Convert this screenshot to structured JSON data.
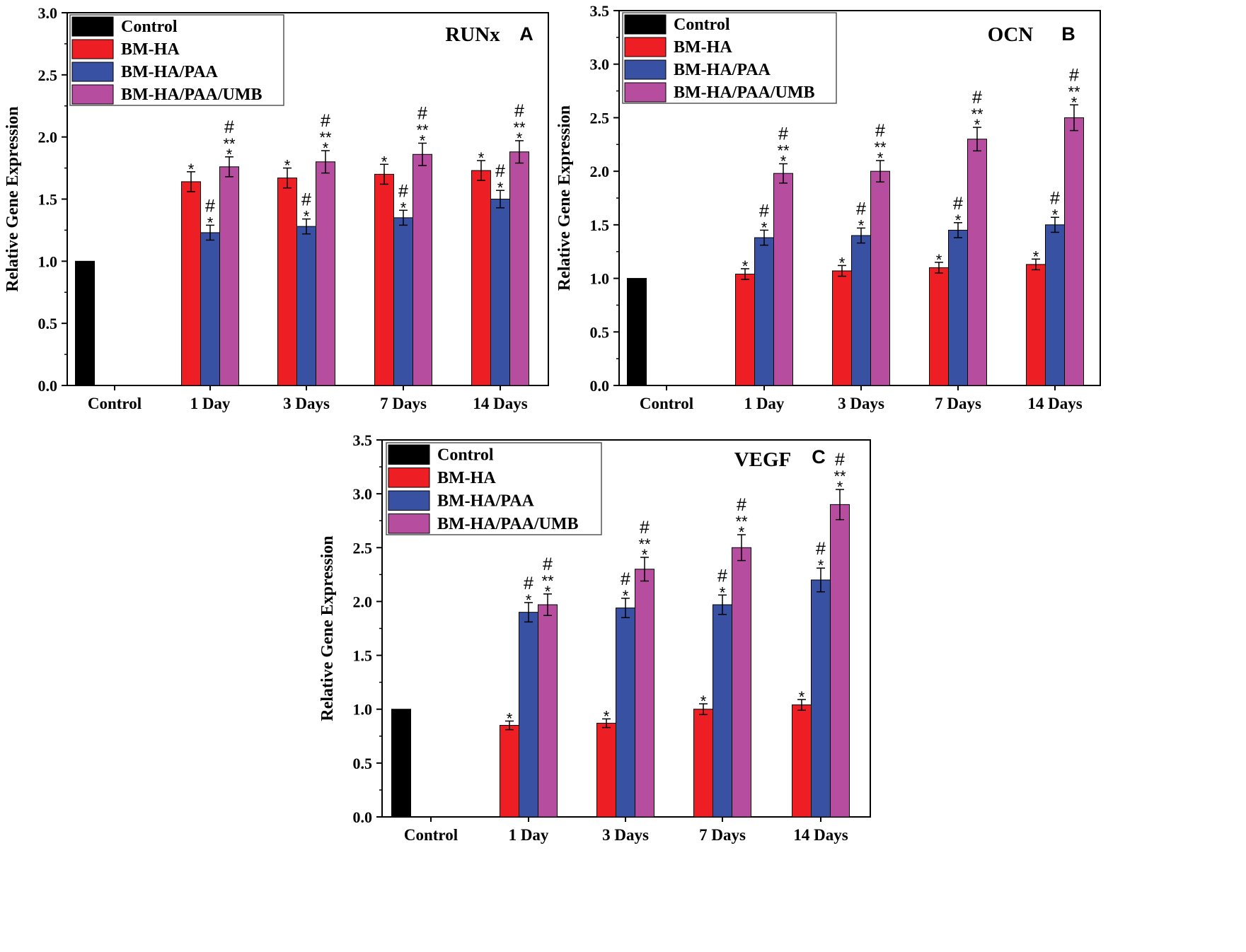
{
  "figure": {
    "legend_entries": [
      "Control",
      "BM-HA",
      "BM-HA/PAA",
      "BM-HA/PAA/UMB"
    ],
    "series_colors": [
      "#000000",
      "#ee1e25",
      "#3951a3",
      "#b64d9f"
    ]
  },
  "chart_data": [
    {
      "type": "bar",
      "panel": "A",
      "title": "RUNx",
      "xlabel": "",
      "ylabel": "Relative Gene Expression",
      "ylim": [
        0,
        3.0
      ],
      "yticks": [
        "0.0",
        "0.5",
        "1.0",
        "1.5",
        "2.0",
        "2.5",
        "3.0"
      ],
      "categories": [
        "Control",
        "1 Day",
        "3 Days",
        "7 Days",
        "14 Days"
      ],
      "legend": [
        "Control",
        "BM-HA",
        "BM-HA/PAA",
        "BM-HA/PAA/UMB"
      ],
      "legend_position": "top-left",
      "series": [
        {
          "name": "Control",
          "values": [
            1.0,
            null,
            null,
            null,
            null
          ],
          "errors": [
            0,
            null,
            null,
            null,
            null
          ],
          "marks": [
            "",
            "",
            "",
            "",
            ""
          ]
        },
        {
          "name": "BM-HA",
          "values": [
            null,
            1.64,
            1.67,
            1.7,
            1.73
          ],
          "errors": [
            null,
            0.08,
            0.08,
            0.08,
            0.08
          ],
          "marks": [
            "",
            "*",
            "*",
            "*",
            "*"
          ]
        },
        {
          "name": "BM-HA/PAA",
          "values": [
            null,
            1.23,
            1.28,
            1.35,
            1.5
          ],
          "errors": [
            null,
            0.06,
            0.06,
            0.06,
            0.07
          ],
          "marks": [
            "",
            "#\n*",
            "#\n*",
            "#\n*",
            "#\n*"
          ]
        },
        {
          "name": "BM-HA/PAA/UMB",
          "values": [
            null,
            1.76,
            1.8,
            1.86,
            1.88
          ],
          "errors": [
            null,
            0.08,
            0.09,
            0.09,
            0.09
          ],
          "marks": [
            "",
            "#\n**\n*",
            "#\n**\n*",
            "#\n**\n*",
            "#\n**\n*"
          ]
        }
      ]
    },
    {
      "type": "bar",
      "panel": "B",
      "title": "OCN",
      "xlabel": "",
      "ylabel": "Relative Gene Expression",
      "ylim": [
        0,
        3.5
      ],
      "yticks": [
        "0.0",
        "0.5",
        "1.0",
        "1.5",
        "2.0",
        "2.5",
        "3.0",
        "3.5"
      ],
      "categories": [
        "Control",
        "1 Day",
        "3 Days",
        "7 Days",
        "14 Days"
      ],
      "legend": [
        "Control",
        "BM-HA",
        "BM-HA/PAA",
        "BM-HA/PAA/UMB"
      ],
      "legend_position": "top-left",
      "series": [
        {
          "name": "Control",
          "values": [
            1.0,
            null,
            null,
            null,
            null
          ],
          "errors": [
            0,
            null,
            null,
            null,
            null
          ],
          "marks": [
            "",
            "",
            "",
            "",
            ""
          ]
        },
        {
          "name": "BM-HA",
          "values": [
            null,
            1.04,
            1.07,
            1.1,
            1.13
          ],
          "errors": [
            null,
            0.05,
            0.05,
            0.05,
            0.05
          ],
          "marks": [
            "",
            "*",
            "*",
            "*",
            "*"
          ]
        },
        {
          "name": "BM-HA/PAA",
          "values": [
            null,
            1.38,
            1.4,
            1.45,
            1.5
          ],
          "errors": [
            null,
            0.07,
            0.07,
            0.07,
            0.07
          ],
          "marks": [
            "",
            "#\n*",
            "#\n*",
            "#\n*",
            "#\n*"
          ]
        },
        {
          "name": "BM-HA/PAA/UMB",
          "values": [
            null,
            1.98,
            2.0,
            2.3,
            2.5
          ],
          "errors": [
            null,
            0.09,
            0.1,
            0.11,
            0.12
          ],
          "marks": [
            "",
            "#\n**\n*",
            "#\n**\n*",
            "#\n**\n*",
            "#\n**\n*"
          ]
        }
      ]
    },
    {
      "type": "bar",
      "panel": "C",
      "title": "VEGF",
      "xlabel": "",
      "ylabel": "Relative Gene Expression",
      "ylim": [
        0,
        3.5
      ],
      "yticks": [
        "0.0",
        "0.5",
        "1.0",
        "1.5",
        "2.0",
        "2.5",
        "3.0",
        "3.5"
      ],
      "categories": [
        "Control",
        "1 Day",
        "3 Days",
        "7 Days",
        "14 Days"
      ],
      "legend": [
        "Control",
        "BM-HA",
        "BM-HA/PAA",
        "BM-HA/PAA/UMB"
      ],
      "legend_position": "top-left",
      "series": [
        {
          "name": "Control",
          "values": [
            1.0,
            null,
            null,
            null,
            null
          ],
          "errors": [
            0,
            null,
            null,
            null,
            null
          ],
          "marks": [
            "",
            "",
            "",
            "",
            ""
          ]
        },
        {
          "name": "BM-HA",
          "values": [
            null,
            0.85,
            0.87,
            1.0,
            1.04
          ],
          "errors": [
            null,
            0.04,
            0.04,
            0.05,
            0.05
          ],
          "marks": [
            "",
            "*",
            "*",
            "*",
            "*"
          ]
        },
        {
          "name": "BM-HA/PAA",
          "values": [
            null,
            1.9,
            1.94,
            1.97,
            2.2
          ],
          "errors": [
            null,
            0.09,
            0.09,
            0.09,
            0.11
          ],
          "marks": [
            "",
            "#\n*",
            "#\n*",
            "#\n*",
            "#\n*"
          ]
        },
        {
          "name": "BM-HA/PAA/UMB",
          "values": [
            null,
            1.97,
            2.3,
            2.5,
            2.9
          ],
          "errors": [
            null,
            0.1,
            0.11,
            0.12,
            0.14
          ],
          "marks": [
            "",
            "#\n**\n*",
            "#\n**\n*",
            "#\n**\n*",
            "#\n**\n*"
          ]
        }
      ]
    }
  ]
}
